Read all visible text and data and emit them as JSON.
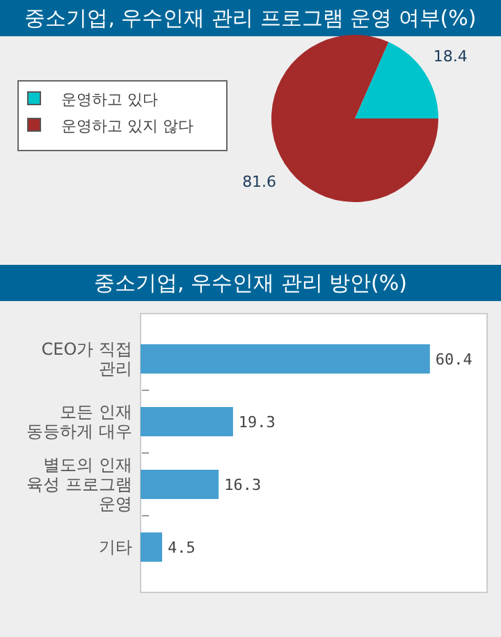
{
  "chart_data": [
    {
      "type": "pie",
      "title": "중소기업, 우수인재 관리 프로그램 운영 여부(%)",
      "categories": [
        "운영하고 있다",
        "운영하고 있지 않다"
      ],
      "values": [
        18.4,
        81.6
      ],
      "colors": [
        "#00c4cc",
        "#a52a2a"
      ],
      "data_labels": true,
      "legend": "left"
    },
    {
      "type": "bar",
      "orientation": "horizontal",
      "title": "중소기업, 우수인재 관리 방안(%)",
      "categories": [
        "CEO가 직접 관리",
        "모든 인재 동등하게 대우",
        "별도의 인재 육성 프로그램 운영",
        "기타"
      ],
      "values": [
        60.4,
        19.3,
        16.3,
        4.5
      ],
      "color": "#469fd0",
      "data_labels": true
    }
  ]
}
